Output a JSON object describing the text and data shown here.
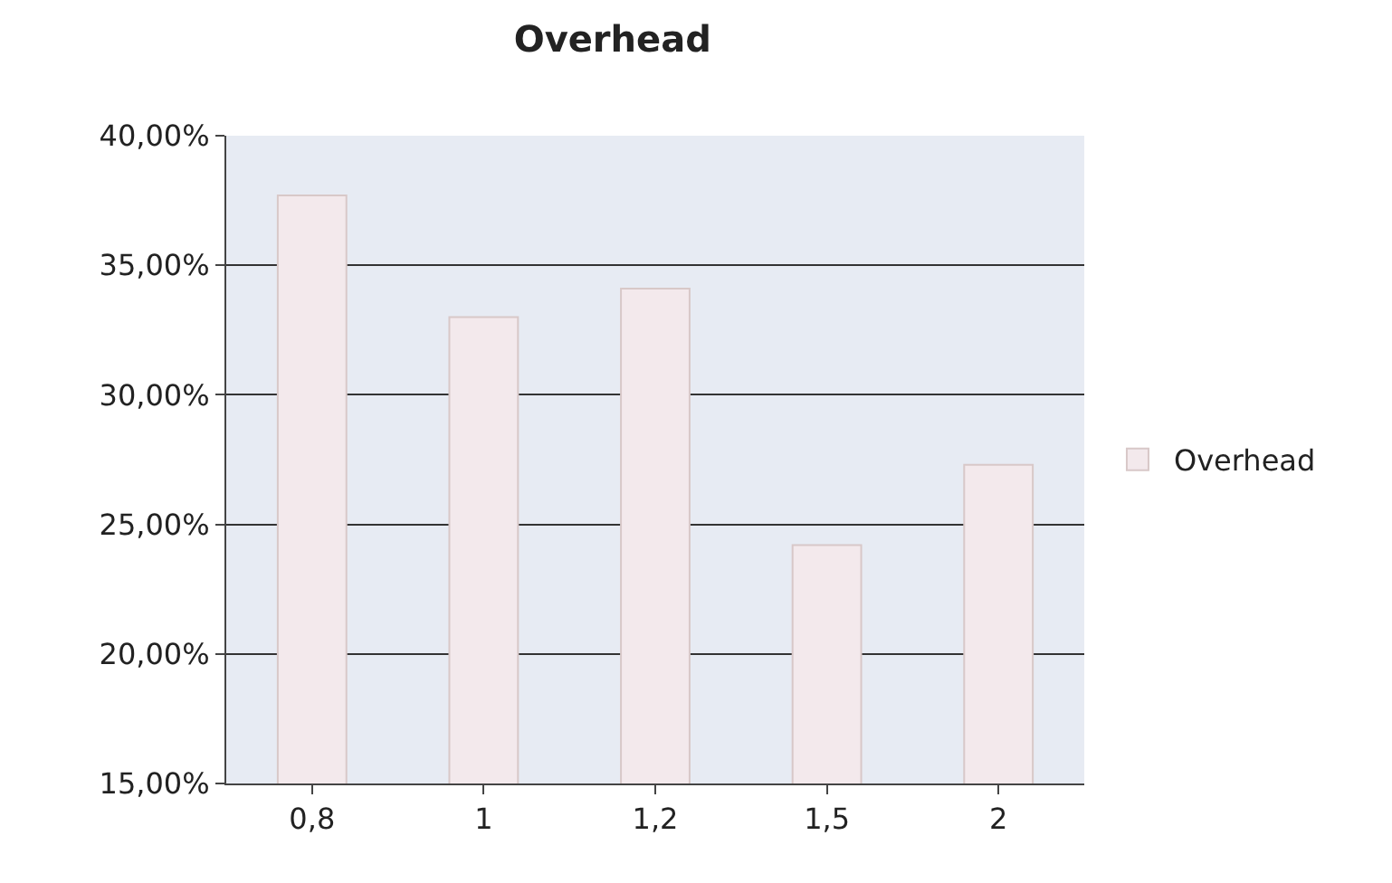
{
  "chart_data": {
    "type": "bar",
    "title": "Overhead",
    "categories": [
      "0,8",
      "1",
      "1,2",
      "1,5",
      "2"
    ],
    "series": [
      {
        "name": "Overhead",
        "color": "#f3e9ec",
        "values": [
          37.7,
          33.0,
          34.1,
          24.2,
          27.3
        ]
      }
    ],
    "ylim": [
      15,
      40
    ],
    "yticks": [
      {
        "value": 15,
        "label": "15,00%"
      },
      {
        "value": 20,
        "label": "20,00%"
      },
      {
        "value": 25,
        "label": "25,00%"
      },
      {
        "value": 30,
        "label": "30,00%"
      },
      {
        "value": 35,
        "label": "35,00%"
      },
      {
        "value": 40,
        "label": "40,00%"
      }
    ],
    "grid": "y",
    "legend": "right"
  }
}
